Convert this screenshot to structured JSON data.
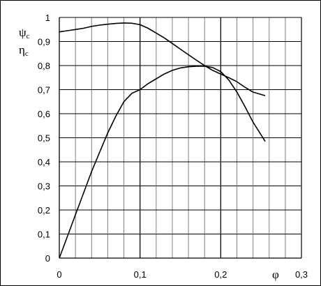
{
  "chart_data": {
    "type": "line",
    "title": "",
    "xlabel": "φ",
    "ylabel_lines": [
      {
        "main": "ψ",
        "sub": "c"
      },
      {
        "main": "η",
        "sub": "c"
      }
    ],
    "xlim": [
      0,
      0.3
    ],
    "ylim": [
      0,
      1
    ],
    "x_ticks": [
      0,
      0.1,
      0.2,
      0.3
    ],
    "x_tick_labels": [
      "0",
      "0,1",
      "0,2",
      "0,3"
    ],
    "y_ticks": [
      0,
      0.1,
      0.2,
      0.3,
      0.4,
      0.5,
      0.6,
      0.7,
      0.8,
      0.9,
      1
    ],
    "y_tick_labels": [
      "0",
      "0,1",
      "0,2",
      "0,3",
      "0,4",
      "0,5",
      "0,6",
      "0,7",
      "0,8",
      "0,9",
      "1"
    ],
    "minor_x_step": 0.02,
    "grid": true,
    "series": [
      {
        "x": [
          0,
          0.01,
          0.02,
          0.03,
          0.04,
          0.05,
          0.06,
          0.07,
          0.08,
          0.09,
          0.1,
          0.11,
          0.12,
          0.13,
          0.14,
          0.15,
          0.16,
          0.17,
          0.18,
          0.19,
          0.2,
          0.21,
          0.22,
          0.23,
          0.24,
          0.255
        ],
        "y": [
          0.94,
          0.945,
          0.95,
          0.955,
          0.963,
          0.968,
          0.972,
          0.975,
          0.977,
          0.976,
          0.97,
          0.955,
          0.935,
          0.915,
          0.892,
          0.868,
          0.845,
          0.822,
          0.8,
          0.78,
          0.765,
          0.75,
          0.733,
          0.71,
          0.69,
          0.675
        ]
      },
      {
        "x": [
          0,
          0.01,
          0.02,
          0.03,
          0.04,
          0.05,
          0.06,
          0.07,
          0.08,
          0.09,
          0.1,
          0.11,
          0.12,
          0.13,
          0.14,
          0.15,
          0.16,
          0.17,
          0.18,
          0.19,
          0.2,
          0.21,
          0.22,
          0.23,
          0.24,
          0.255
        ],
        "y": [
          0,
          0.09,
          0.18,
          0.27,
          0.36,
          0.44,
          0.52,
          0.59,
          0.65,
          0.685,
          0.7,
          0.725,
          0.745,
          0.765,
          0.78,
          0.79,
          0.795,
          0.797,
          0.797,
          0.792,
          0.775,
          0.74,
          0.69,
          0.63,
          0.565,
          0.485
        ]
      }
    ]
  }
}
